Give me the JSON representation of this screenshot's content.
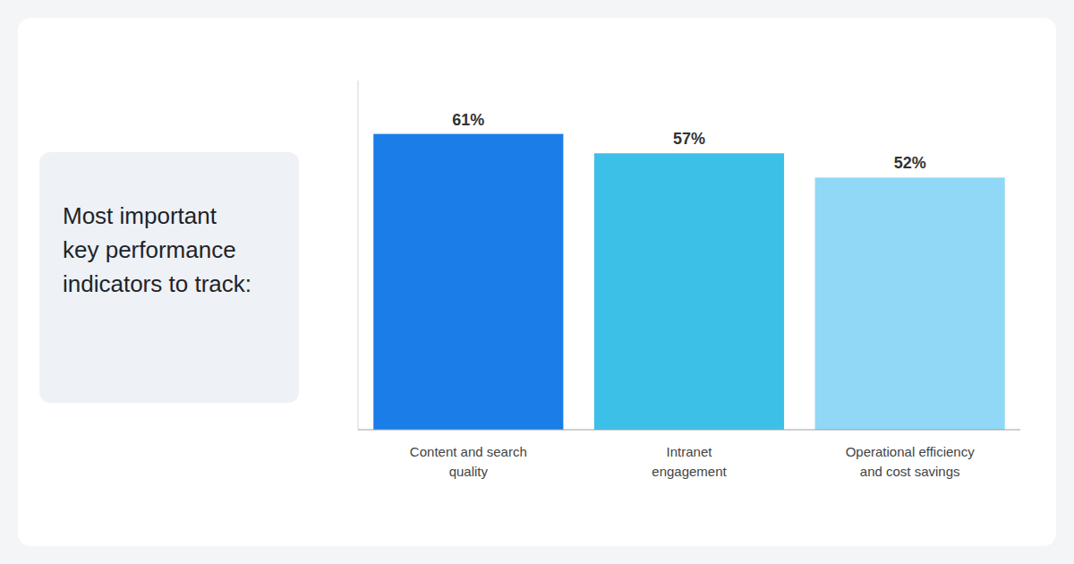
{
  "chart_data": {
    "type": "bar",
    "title": "Most important\nkey performance\nindicators to track:",
    "categories": [
      "Content and search\nquality",
      "Intranet\nengagement",
      "Operational efficiency\nand cost savings"
    ],
    "values": [
      61,
      57,
      52
    ],
    "value_labels": [
      "61%",
      "57%",
      "52%"
    ],
    "colors": [
      "#1a7de8",
      "#3dc0e8",
      "#90d8f5"
    ],
    "ylim": [
      0,
      72
    ],
    "data_labels": true,
    "tick_labels": "x",
    "grid": false
  }
}
